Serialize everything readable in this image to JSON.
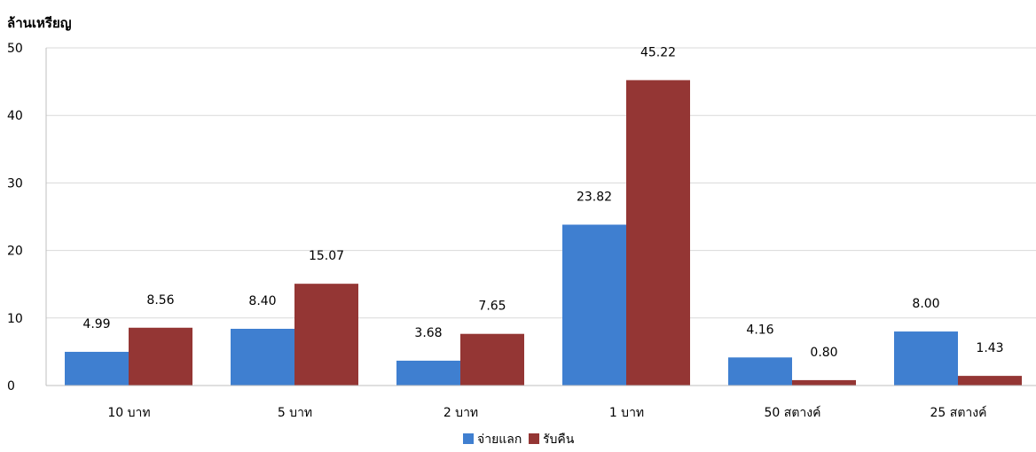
{
  "chart_data": {
    "type": "bar",
    "ylabel": "ล้านเหรียญ",
    "xlabel": "",
    "ylim": [
      0,
      50
    ],
    "yticks": [
      0,
      10,
      20,
      30,
      40,
      50
    ],
    "grid": true,
    "legend_position": "bottom",
    "categories": [
      "10 บาท",
      "5 บาท",
      "2 บาท",
      "1 บาท",
      "50 สตางค์",
      "25 สตางค์"
    ],
    "series": [
      {
        "name": "จ่ายแลก",
        "color": "#3f7fd0",
        "values": [
          4.99,
          8.4,
          3.68,
          23.82,
          4.16,
          8.0
        ],
        "value_labels": [
          "4.99",
          "8.40",
          "3.68",
          "23.82",
          "4.16",
          "8.00"
        ]
      },
      {
        "name": "รับคืน",
        "color": "#943634",
        "values": [
          8.56,
          15.07,
          7.65,
          45.22,
          0.8,
          1.43
        ],
        "value_labels": [
          "8.56",
          "15.07",
          "7.65",
          "45.22",
          "0.80",
          "1.43"
        ]
      }
    ]
  }
}
